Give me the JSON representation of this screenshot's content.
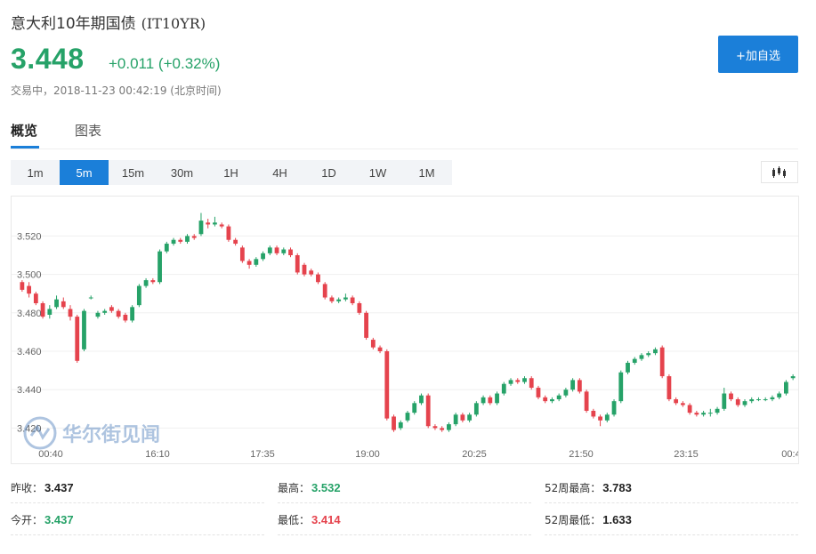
{
  "header": {
    "name": "意大利10年期国债",
    "code": "(IT10YR)",
    "price": "3.448",
    "change": "+0.011 (+0.32%)",
    "status": "交易中，2018-11-23 00:42:19 (北京时间)",
    "watch_button": "+加自选"
  },
  "tabs": [
    {
      "label": "概览",
      "active": true
    },
    {
      "label": "图表",
      "active": false
    }
  ],
  "periods": [
    {
      "label": "1m",
      "active": false
    },
    {
      "label": "5m",
      "active": true
    },
    {
      "label": "15m",
      "active": false
    },
    {
      "label": "30m",
      "active": false
    },
    {
      "label": "1H",
      "active": false
    },
    {
      "label": "4H",
      "active": false
    },
    {
      "label": "1D",
      "active": false
    },
    {
      "label": "1W",
      "active": false
    },
    {
      "label": "1M",
      "active": false
    }
  ],
  "chart_type_icon": "candlestick-icon",
  "watermark": "华尔街见闻",
  "colors": {
    "up": "#26a268",
    "down": "#e5434d",
    "accent": "#1b7fd9"
  },
  "chart_data": {
    "type": "candlestick",
    "y_ticks": [
      "3.520",
      "3.500",
      "3.480",
      "3.460",
      "3.440",
      "3.420"
    ],
    "x_ticks": [
      "00:40",
      "16:10",
      "17:35",
      "19:00",
      "20:25",
      "21:50",
      "23:15",
      "00:4"
    ],
    "ylim": [
      3.41,
      3.535
    ],
    "candles": [
      [
        3.496,
        3.492,
        3.497,
        3.491
      ],
      [
        3.494,
        3.49,
        3.496,
        3.488
      ],
      [
        3.49,
        3.485,
        3.491,
        3.484
      ],
      [
        3.485,
        3.478,
        3.486,
        3.477
      ],
      [
        3.479,
        3.482,
        3.484,
        3.477
      ],
      [
        3.483,
        3.487,
        3.489,
        3.482
      ],
      [
        3.486,
        3.483,
        3.488,
        3.482
      ],
      [
        3.482,
        3.478,
        3.484,
        3.476
      ],
      [
        3.478,
        3.455,
        3.479,
        3.454
      ],
      [
        3.461,
        3.481,
        3.482,
        3.46
      ],
      [
        3.488,
        3.488,
        3.489,
        3.487
      ],
      [
        3.478,
        3.48,
        3.481,
        3.477
      ],
      [
        3.48,
        3.481,
        3.482,
        3.479
      ],
      [
        3.483,
        3.481,
        3.484,
        3.48
      ],
      [
        3.481,
        3.478,
        3.482,
        3.477
      ],
      [
        3.479,
        3.476,
        3.48,
        3.475
      ],
      [
        3.476,
        3.483,
        3.484,
        3.475
      ],
      [
        3.484,
        3.494,
        3.495,
        3.483
      ],
      [
        3.494,
        3.497,
        3.498,
        3.493
      ],
      [
        3.497,
        3.496,
        3.498,
        3.495
      ],
      [
        3.496,
        3.512,
        3.513,
        3.495
      ],
      [
        3.512,
        3.516,
        3.517,
        3.511
      ],
      [
        3.516,
        3.518,
        3.519,
        3.515
      ],
      [
        3.518,
        3.517,
        3.519,
        3.516
      ],
      [
        3.517,
        3.52,
        3.521,
        3.516
      ],
      [
        3.52,
        3.519,
        3.521,
        3.518
      ],
      [
        3.521,
        3.528,
        3.532,
        3.52
      ],
      [
        3.527,
        3.526,
        3.529,
        3.524
      ],
      [
        3.526,
        3.527,
        3.53,
        3.525
      ],
      [
        3.526,
        3.525,
        3.527,
        3.524
      ],
      [
        3.525,
        3.518,
        3.526,
        3.517
      ],
      [
        3.518,
        3.516,
        3.519,
        3.515
      ],
      [
        3.514,
        3.507,
        3.515,
        3.506
      ],
      [
        3.507,
        3.505,
        3.508,
        3.503
      ],
      [
        3.505,
        3.508,
        3.509,
        3.504
      ],
      [
        3.508,
        3.511,
        3.512,
        3.507
      ],
      [
        3.511,
        3.514,
        3.515,
        3.51
      ],
      [
        3.514,
        3.511,
        3.515,
        3.51
      ],
      [
        3.511,
        3.513,
        3.514,
        3.51
      ],
      [
        3.513,
        3.51,
        3.514,
        3.509
      ],
      [
        3.51,
        3.501,
        3.511,
        3.5
      ],
      [
        3.505,
        3.5,
        3.506,
        3.499
      ],
      [
        3.502,
        3.5,
        3.503,
        3.499
      ],
      [
        3.5,
        3.496,
        3.501,
        3.495
      ],
      [
        3.495,
        3.488,
        3.496,
        3.487
      ],
      [
        3.488,
        3.486,
        3.489,
        3.485
      ],
      [
        3.486,
        3.487,
        3.488,
        3.485
      ],
      [
        3.487,
        3.488,
        3.49,
        3.486
      ],
      [
        3.488,
        3.485,
        3.489,
        3.484
      ],
      [
        3.485,
        3.48,
        3.486,
        3.479
      ],
      [
        3.48,
        3.467,
        3.481,
        3.466
      ],
      [
        3.466,
        3.462,
        3.467,
        3.461
      ],
      [
        3.462,
        3.46,
        3.463,
        3.459
      ],
      [
        3.46,
        3.425,
        3.461,
        3.424
      ],
      [
        3.426,
        3.419,
        3.427,
        3.418
      ],
      [
        3.42,
        3.423,
        3.424,
        3.419
      ],
      [
        3.424,
        3.428,
        3.429,
        3.423
      ],
      [
        3.428,
        3.433,
        3.434,
        3.427
      ],
      [
        3.433,
        3.437,
        3.438,
        3.432
      ],
      [
        3.437,
        3.421,
        3.438,
        3.42
      ],
      [
        3.421,
        3.42,
        3.422,
        3.419
      ],
      [
        3.42,
        3.419,
        3.421,
        3.418
      ],
      [
        3.419,
        3.422,
        3.423,
        3.418
      ],
      [
        3.422,
        3.427,
        3.428,
        3.421
      ],
      [
        3.427,
        3.424,
        3.428,
        3.423
      ],
      [
        3.424,
        3.427,
        3.428,
        3.423
      ],
      [
        3.427,
        3.433,
        3.434,
        3.426
      ],
      [
        3.433,
        3.436,
        3.437,
        3.432
      ],
      [
        3.436,
        3.433,
        3.437,
        3.432
      ],
      [
        3.433,
        3.438,
        3.439,
        3.432
      ],
      [
        3.438,
        3.443,
        3.444,
        3.437
      ],
      [
        3.443,
        3.445,
        3.446,
        3.442
      ],
      [
        3.445,
        3.444,
        3.446,
        3.443
      ],
      [
        3.444,
        3.446,
        3.447,
        3.443
      ],
      [
        3.446,
        3.441,
        3.447,
        3.44
      ],
      [
        3.441,
        3.436,
        3.442,
        3.435
      ],
      [
        3.436,
        3.434,
        3.437,
        3.433
      ],
      [
        3.434,
        3.435,
        3.436,
        3.433
      ],
      [
        3.435,
        3.437,
        3.438,
        3.434
      ],
      [
        3.437,
        3.44,
        3.441,
        3.436
      ],
      [
        3.44,
        3.445,
        3.446,
        3.439
      ],
      [
        3.445,
        3.439,
        3.446,
        3.438
      ],
      [
        3.439,
        3.429,
        3.44,
        3.428
      ],
      [
        3.429,
        3.426,
        3.43,
        3.425
      ],
      [
        3.426,
        3.424,
        3.427,
        3.421
      ],
      [
        3.424,
        3.427,
        3.428,
        3.423
      ],
      [
        3.427,
        3.434,
        3.435,
        3.426
      ],
      [
        3.434,
        3.449,
        3.45,
        3.433
      ],
      [
        3.449,
        3.454,
        3.455,
        3.448
      ],
      [
        3.454,
        3.456,
        3.457,
        3.453
      ],
      [
        3.456,
        3.458,
        3.459,
        3.455
      ],
      [
        3.458,
        3.459,
        3.46,
        3.457
      ],
      [
        3.459,
        3.461,
        3.462,
        3.458
      ],
      [
        3.462,
        3.447,
        3.463,
        3.446
      ],
      [
        3.447,
        3.435,
        3.448,
        3.434
      ],
      [
        3.435,
        3.433,
        3.436,
        3.432
      ],
      [
        3.433,
        3.432,
        3.434,
        3.431
      ],
      [
        3.432,
        3.428,
        3.433,
        3.427
      ],
      [
        3.428,
        3.427,
        3.429,
        3.426
      ],
      [
        3.427,
        3.428,
        3.429,
        3.426
      ],
      [
        3.428,
        3.428,
        3.43,
        3.426
      ],
      [
        3.428,
        3.43,
        3.431,
        3.427
      ],
      [
        3.43,
        3.438,
        3.441,
        3.429
      ],
      [
        3.438,
        3.435,
        3.439,
        3.434
      ],
      [
        3.435,
        3.432,
        3.436,
        3.431
      ],
      [
        3.432,
        3.434,
        3.435,
        3.431
      ],
      [
        3.434,
        3.435,
        3.436,
        3.433
      ],
      [
        3.435,
        3.435,
        3.436,
        3.434
      ],
      [
        3.435,
        3.435,
        3.436,
        3.434
      ],
      [
        3.435,
        3.436,
        3.437,
        3.434
      ],
      [
        3.436,
        3.438,
        3.439,
        3.435
      ],
      [
        3.438,
        3.444,
        3.445,
        3.437
      ],
      [
        3.446,
        3.447,
        3.448,
        3.445
      ]
    ]
  },
  "stats": [
    {
      "label": "昨收：",
      "value": "3.437",
      "color": "black"
    },
    {
      "label": "最高：",
      "value": "3.532",
      "color": "green"
    },
    {
      "label": "52周最高：",
      "value": "3.783",
      "color": "black"
    },
    {
      "label": "今开：",
      "value": "3.437",
      "color": "green"
    },
    {
      "label": "最低：",
      "value": "3.414",
      "color": "red"
    },
    {
      "label": "52周最低：",
      "value": "1.633",
      "color": "black"
    }
  ]
}
